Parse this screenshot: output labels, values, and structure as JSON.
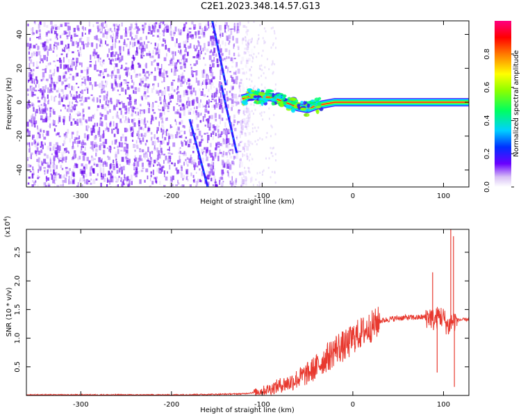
{
  "title": "C2E1.2023.348.14.57.G13",
  "chart_data": [
    {
      "type": "heatmap",
      "xlabel": "Height of straight line (km)",
      "ylabel": "Frequency (Hz)",
      "xlim": [
        -360,
        128
      ],
      "ylim": [
        -50,
        48
      ],
      "x_ticks": [
        "-300",
        "-200",
        "-100",
        "0",
        "100"
      ],
      "x_tick_values": [
        -300,
        -200,
        -100,
        0,
        100
      ],
      "y_ticks": [
        "-40",
        "-20",
        "0",
        "20",
        "40"
      ],
      "y_tick_values": [
        -40,
        -20,
        0,
        20,
        40
      ],
      "colorbar": {
        "label": "Normalized spectral amplitude",
        "range": [
          0,
          1
        ],
        "ticks": [
          "0.0",
          "0.2",
          "0.4",
          "0.6",
          "0.8"
        ],
        "tick_values": [
          0.0,
          0.2,
          0.4,
          0.6,
          0.8
        ]
      },
      "noise_region_x": [
        -360,
        -120
      ],
      "signal_track": {
        "x": [
          -122,
          -110,
          -100,
          -90,
          -80,
          -70,
          -60,
          -50,
          -40,
          -30,
          -20,
          -10,
          0,
          20,
          40,
          60,
          80,
          100,
          110,
          128
        ],
        "freq": [
          2,
          4,
          3,
          3,
          1,
          -1,
          -3,
          -4,
          -2,
          -1,
          0,
          0,
          0,
          0,
          0,
          0,
          0,
          0,
          0,
          0
        ]
      },
      "streaks": [
        {
          "x": [
            -155,
            -140
          ],
          "freq": [
            48,
            10
          ]
        },
        {
          "x": [
            -145,
            -128
          ],
          "freq": [
            10,
            -30
          ]
        },
        {
          "x": [
            -180,
            -160
          ],
          "freq": [
            -10,
            -50
          ]
        }
      ]
    },
    {
      "type": "line",
      "xlabel": "Height of straight line (km)",
      "ylabel": "SNR (10 * v/v)",
      "y_scale_label": "(x10",
      "y_scale_exp": "4",
      "xlim": [
        -360,
        128
      ],
      "ylim": [
        0,
        2.9
      ],
      "x_ticks": [
        "-300",
        "-200",
        "-100",
        "0",
        "100"
      ],
      "x_tick_values": [
        -300,
        -200,
        -100,
        0,
        100
      ],
      "y_ticks": [
        "0.5",
        "1.0",
        "1.5",
        "2.0",
        "2.5"
      ],
      "y_tick_values": [
        0.5,
        1.0,
        1.5,
        2.0,
        2.5
      ],
      "color": "#e8392f",
      "series": [
        {
          "x": [
            -360,
            -300,
            -250,
            -200,
            -150,
            -120,
            -110,
            -100,
            -90,
            -80,
            -70,
            -60,
            -50,
            -40,
            -30,
            -25,
            -20,
            -15,
            -10,
            -5,
            0,
            10,
            20,
            30,
            40,
            50,
            60,
            70,
            80,
            85,
            90,
            95,
            100,
            105,
            110,
            115,
            120,
            128
          ],
          "y": [
            0.01,
            0.01,
            0.01,
            0.01,
            0.02,
            0.03,
            0.05,
            0.08,
            0.12,
            0.18,
            0.22,
            0.3,
            0.38,
            0.5,
            0.65,
            0.7,
            0.8,
            0.85,
            0.85,
            0.9,
            1.0,
            1.1,
            1.2,
            1.3,
            1.33,
            1.35,
            1.36,
            1.36,
            1.37,
            1.38,
            1.3,
            1.4,
            1.35,
            1.2,
            1.3,
            1.32,
            1.32,
            1.33
          ]
        }
      ],
      "spikes": [
        {
          "x": 88,
          "y": 2.15
        },
        {
          "x": 93,
          "y": 0.4
        },
        {
          "x": 108,
          "y": 2.9
        },
        {
          "x": 111,
          "y": 2.78
        },
        {
          "x": 112,
          "y": 0.15
        }
      ]
    }
  ]
}
